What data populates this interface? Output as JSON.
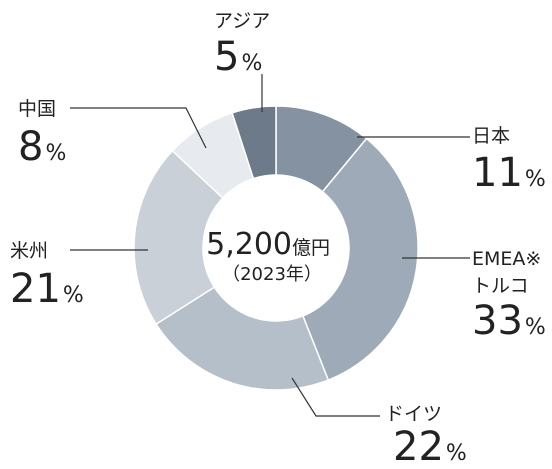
{
  "chart_data": {
    "type": "pie",
    "donut": true,
    "categories": [
      [
        "日本"
      ],
      [
        "EMEA※",
        "トルコ"
      ],
      [
        "ドイツ"
      ],
      [
        "米州"
      ],
      [
        "中国"
      ],
      [
        "アジア"
      ]
    ],
    "values": [
      11,
      33,
      22,
      21,
      8,
      5
    ],
    "unit": "%",
    "colors": [
      "#8592a1",
      "#9eaab7",
      "#b5bfca",
      "#c9d0d8",
      "#e7eaee",
      "#6d7a8a"
    ],
    "center_value": "5,200",
    "center_unit": "億円",
    "center_note": "（2023年）"
  }
}
